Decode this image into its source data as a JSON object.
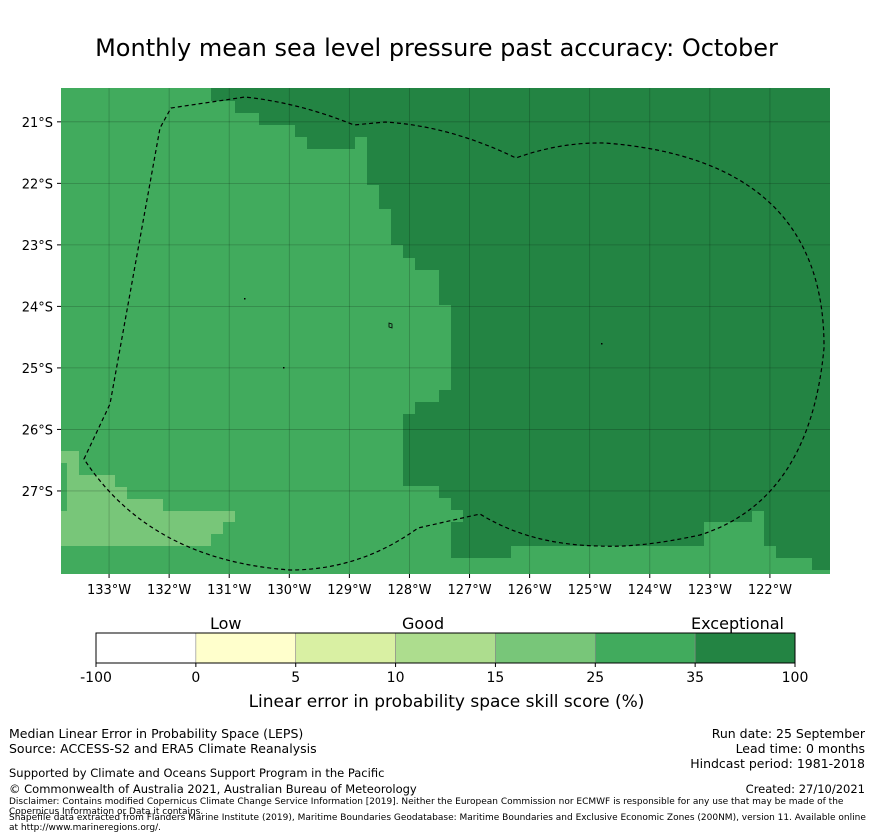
{
  "title": "Monthly mean sea level pressure past accuracy: October",
  "chart_data": {
    "type": "map",
    "colors": {
      "good": "#41ab5d",
      "exceptional": "#238443",
      "light": "#78c679",
      "band_4": "#addd8e",
      "band_3": "#d9f0a3",
      "band_2": "#ffffcc",
      "band_1": "#ffffff",
      "outline": "#000000"
    },
    "x_ticks": [
      "133°W",
      "132°W",
      "131°W",
      "130°W",
      "129°W",
      "128°W",
      "127°W",
      "126°W",
      "125°W",
      "124°W",
      "123°W",
      "122°W"
    ],
    "y_ticks": [
      "21°S",
      "22°S",
      "23°S",
      "24°S",
      "25°S",
      "26°S",
      "27°S"
    ],
    "x_range": [
      -133.8,
      -121.0
    ],
    "y_range": [
      -28.35,
      -20.45
    ],
    "colorbar": {
      "boundaries": [
        "-100",
        "0",
        "5",
        "10",
        "15",
        "25",
        "35",
        "100"
      ],
      "categories": [
        "Low",
        "Good",
        "Exceptional"
      ],
      "label": "Linear error in probability space skill score (%)"
    }
  },
  "info": {
    "line1": "Median Linear Error in Probability Space (LEPS)",
    "line2": "Source: ACCESS-S2 and ERA5 Climate Reanalysis",
    "support": "Supported by Climate and Oceans Support Program in the Pacific",
    "copyright": "© Commonwealth of Australia 2021, Australian Bureau of Meteorology",
    "disclaimer1": "Disclaimer: Contains modified Copernicus Climate Change Service Information [2019]. Neither the European Commission nor ECMWF is responsible for any use that may be made of the Copernicus Information or Data it contains.",
    "disclaimer2": "Shapefile data extracted from Flanders Marine Institute (2019), Maritime Boundaries Geodatabase: Maritime Boundaries and Exclusive Economic Zones (200NM), version 11. Available online at http://www.marineregions.org/."
  },
  "run": {
    "run_date": "Run date: 25 September",
    "lead_time": "Lead time: 0 months",
    "hindcast": "Hindcast period: 1981-2018",
    "created": "Created: 27/10/2021"
  }
}
